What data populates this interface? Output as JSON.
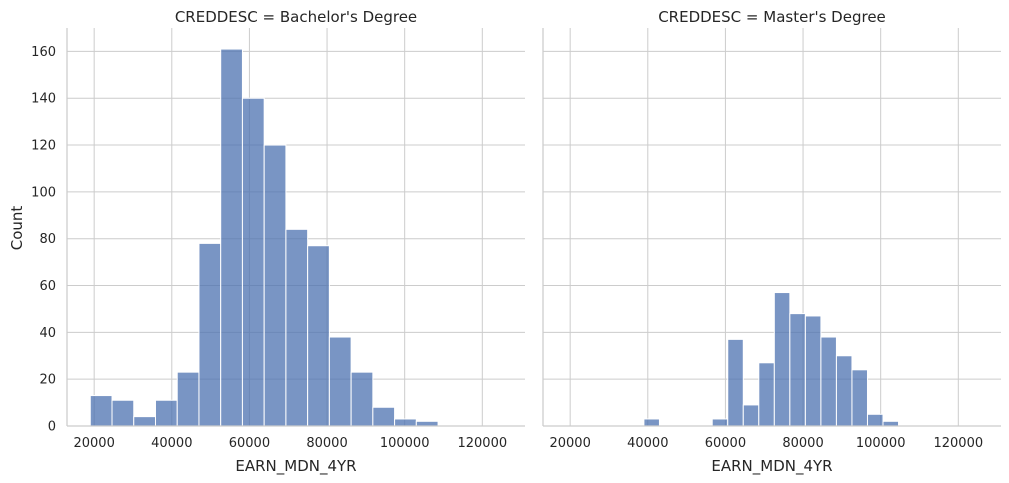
{
  "chart_data": {
    "type": "bar",
    "subtype": "histogram-facets",
    "x_label": "EARN_MDN_4YR",
    "y_label": "Count",
    "xlim": [
      13000,
      131000
    ],
    "ylim": [
      0,
      170
    ],
    "x_ticks": [
      20000,
      40000,
      60000,
      80000,
      100000,
      120000
    ],
    "y_ticks": [
      0,
      20,
      40,
      60,
      80,
      100,
      120,
      140,
      160
    ],
    "bar_color": "#4c72b0",
    "grid": true,
    "panels": [
      {
        "title": "CREDDESC = Bachelor's Degree",
        "bins": [
          {
            "x0": 19000,
            "x1": 24600,
            "count": 13
          },
          {
            "x0": 24600,
            "x1": 30200,
            "count": 11
          },
          {
            "x0": 30200,
            "x1": 35800,
            "count": 4
          },
          {
            "x0": 35800,
            "x1": 41400,
            "count": 11
          },
          {
            "x0": 41400,
            "x1": 47000,
            "count": 23
          },
          {
            "x0": 47000,
            "x1": 52600,
            "count": 78
          },
          {
            "x0": 52600,
            "x1": 58200,
            "count": 161
          },
          {
            "x0": 58200,
            "x1": 63800,
            "count": 140
          },
          {
            "x0": 63800,
            "x1": 69400,
            "count": 120
          },
          {
            "x0": 69400,
            "x1": 75000,
            "count": 84
          },
          {
            "x0": 75000,
            "x1": 80600,
            "count": 77
          },
          {
            "x0": 80600,
            "x1": 86200,
            "count": 38
          },
          {
            "x0": 86200,
            "x1": 91800,
            "count": 23
          },
          {
            "x0": 91800,
            "x1": 97400,
            "count": 8
          },
          {
            "x0": 97400,
            "x1": 103000,
            "count": 3
          },
          {
            "x0": 103000,
            "x1": 108600,
            "count": 2
          }
        ]
      },
      {
        "title": "CREDDESC = Master's Degree",
        "bins": [
          {
            "x0": 39000,
            "x1": 43000,
            "count": 3
          },
          {
            "x0": 56600,
            "x1": 60600,
            "count": 3
          },
          {
            "x0": 60600,
            "x1": 64600,
            "count": 37
          },
          {
            "x0": 64600,
            "x1": 68600,
            "count": 9
          },
          {
            "x0": 68600,
            "x1": 72600,
            "count": 27
          },
          {
            "x0": 72600,
            "x1": 76600,
            "count": 57
          },
          {
            "x0": 76600,
            "x1": 80600,
            "count": 48
          },
          {
            "x0": 80600,
            "x1": 84600,
            "count": 47
          },
          {
            "x0": 84600,
            "x1": 88600,
            "count": 38
          },
          {
            "x0": 88600,
            "x1": 92600,
            "count": 30
          },
          {
            "x0": 92600,
            "x1": 96600,
            "count": 24
          },
          {
            "x0": 96600,
            "x1": 100600,
            "count": 5
          },
          {
            "x0": 100600,
            "x1": 104600,
            "count": 2
          }
        ]
      }
    ]
  }
}
